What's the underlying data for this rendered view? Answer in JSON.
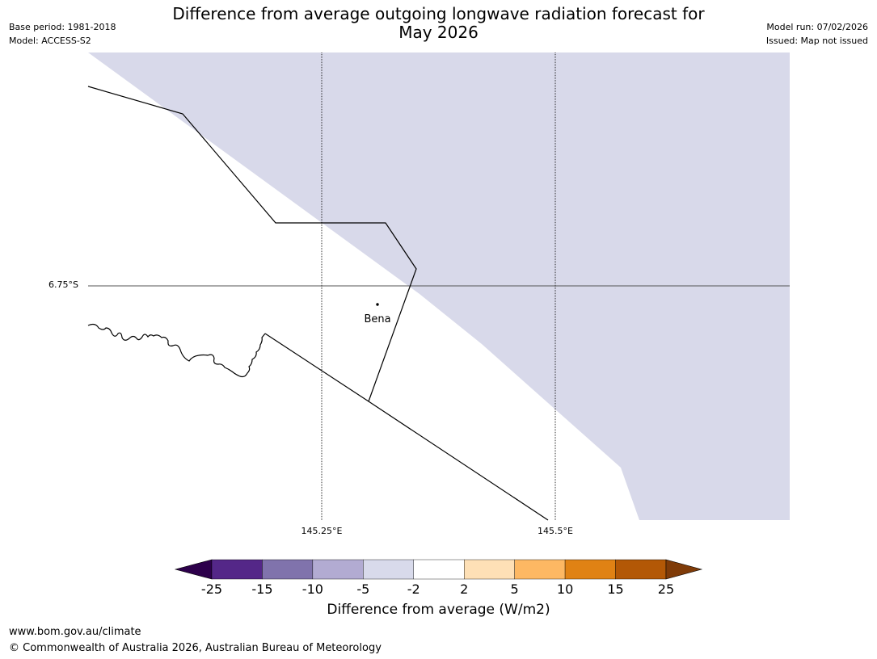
{
  "header": {
    "title_line1": "Difference from average outgoing longwave radiation forecast for",
    "title_line2": "May 2026",
    "base_period": "Base period: 1981-2018",
    "model": "Model: ACCESS-S2",
    "model_run": "Model run: 07/02/2026",
    "issued": "Issued: Map not issued"
  },
  "map": {
    "lat_label": "6.75°S",
    "lon_labels": [
      "145.25°E",
      "145.5°E"
    ],
    "place": "Bena",
    "fill_category": "-5 to -2",
    "colors": {
      "fill": "#d8d9ea",
      "background": "#ffffff",
      "boundary": "#000000",
      "grid": "#555555"
    }
  },
  "colorbar": {
    "title": "Difference from average (W/m2)",
    "ticks": [
      "-25",
      "-15",
      "-10",
      "-5",
      "-2",
      "2",
      "5",
      "10",
      "15",
      "25"
    ],
    "colors": [
      "#2d004b",
      "#542788",
      "#8073ac",
      "#b2abd2",
      "#d8daeb",
      "#ffffff",
      "#fee0b6",
      "#fdb863",
      "#e08214",
      "#b35806",
      "#7f3b08"
    ]
  },
  "footer": {
    "url": "www.bom.gov.au/climate",
    "copyright": "© Commonwealth of Australia 2026, Australian Bureau of Meteorology"
  }
}
